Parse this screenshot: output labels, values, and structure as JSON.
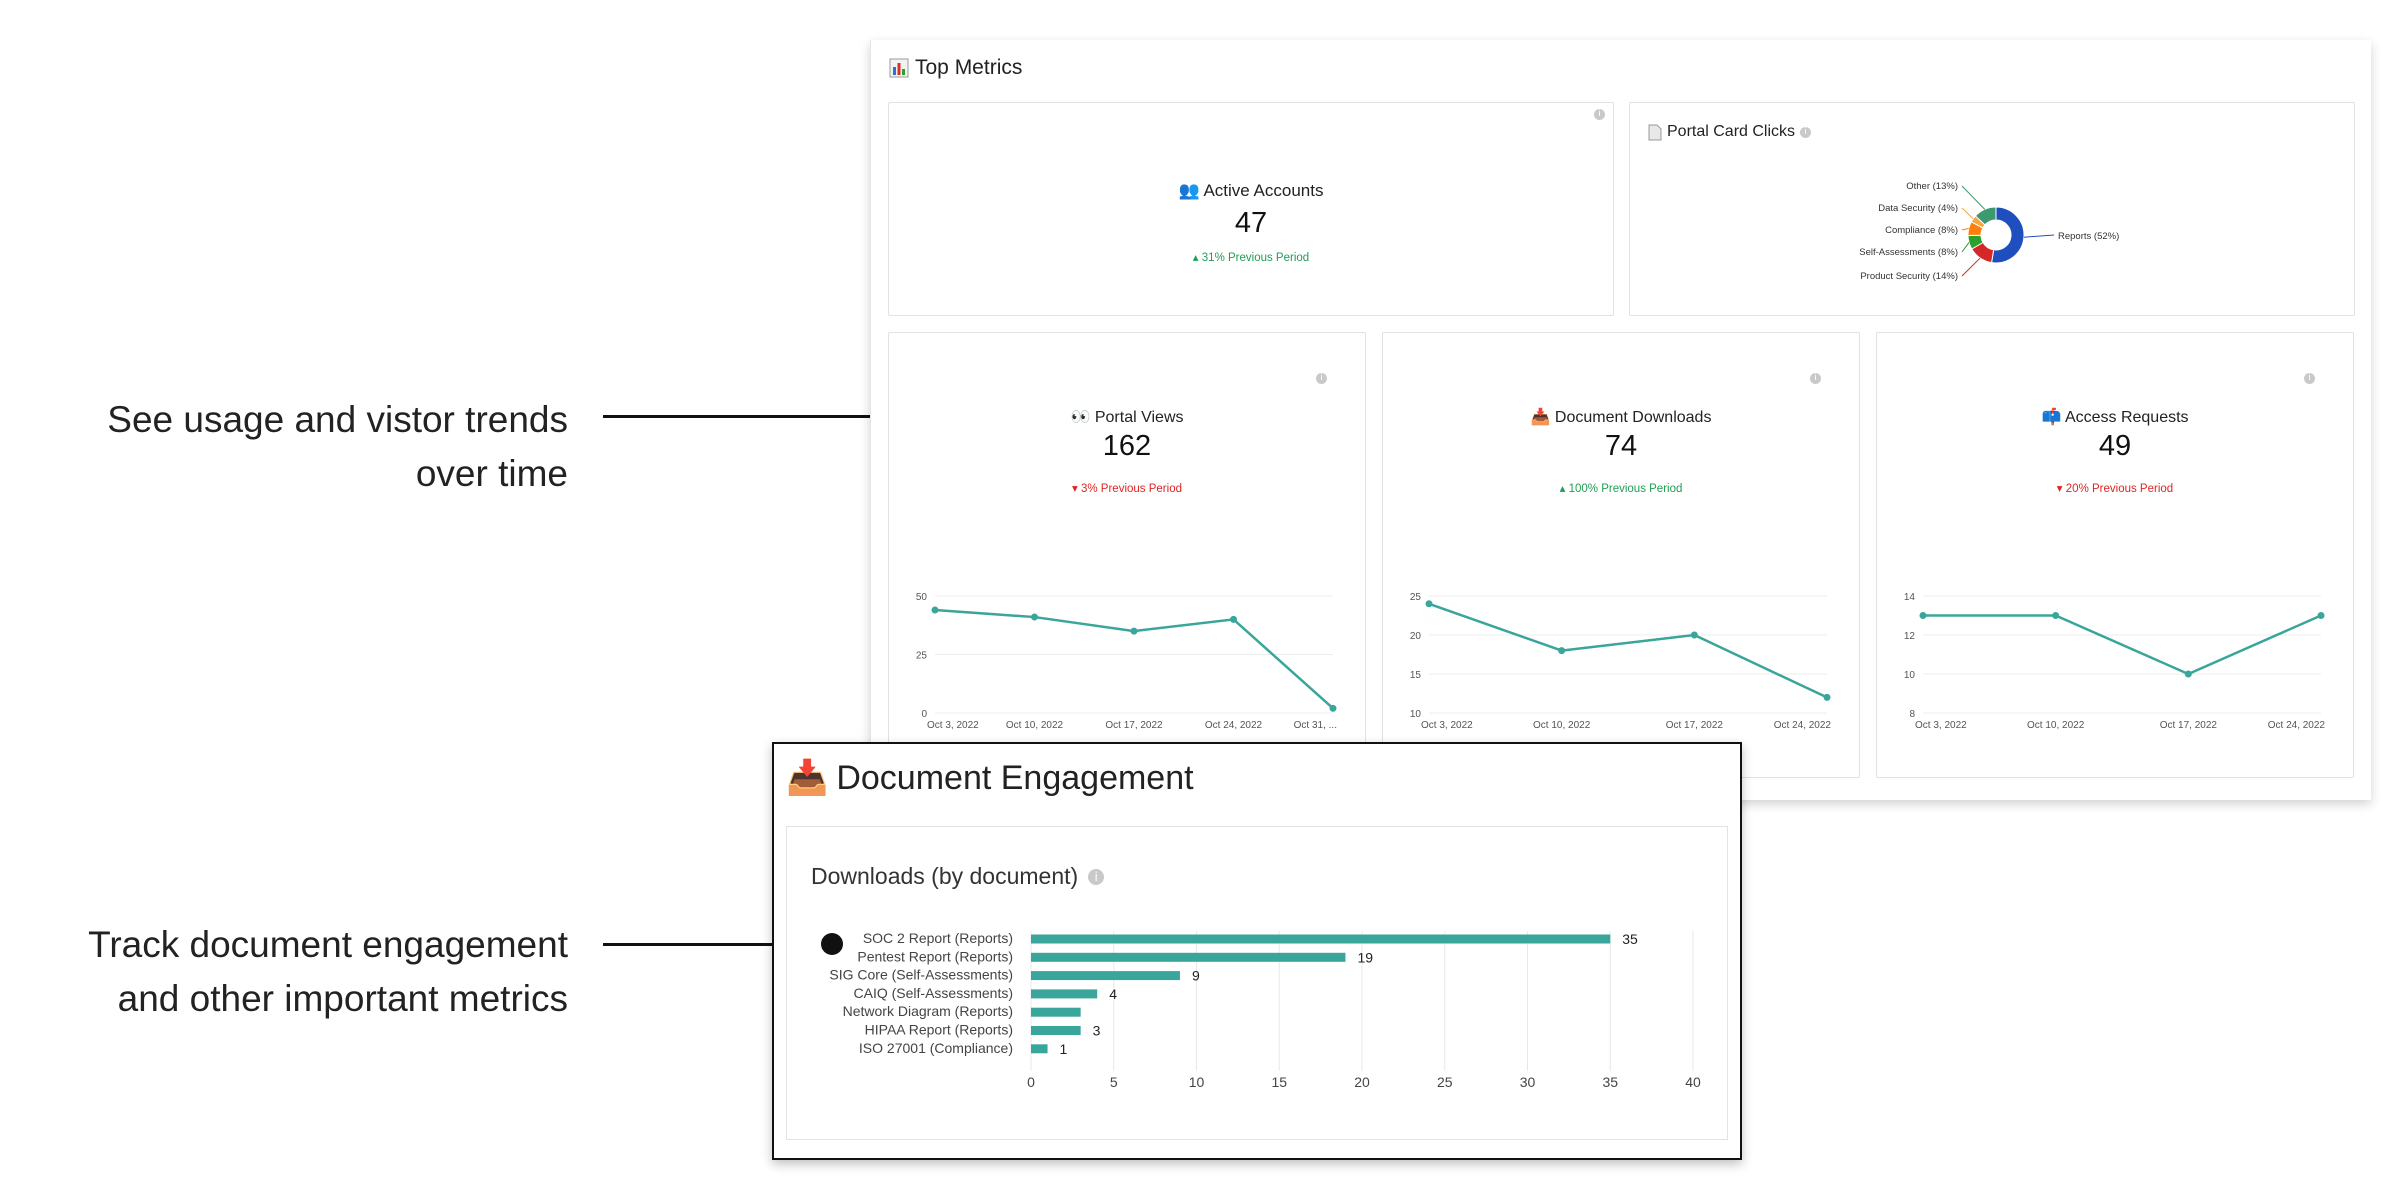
{
  "callouts": {
    "usage": [
      "See usage and vistor trends",
      "over time"
    ],
    "engagement": [
      "Track document engagement",
      "and other important metrics"
    ]
  },
  "top_metrics": {
    "icon": "bar-chart-icon",
    "title": "Top Metrics"
  },
  "active_accounts": {
    "icon": "people-icon",
    "title": "Active Accounts",
    "value": "47",
    "delta": "31% Previous Period",
    "trend": "up"
  },
  "portal_card_clicks": {
    "icon": "document-icon",
    "title": "Portal Card Clicks"
  },
  "kpis": [
    {
      "icon": "eyes-icon",
      "title": "Portal Views",
      "value": "162",
      "delta": "3% Previous Period",
      "trend": "down"
    },
    {
      "icon": "inbox-download-icon",
      "title": "Document Downloads",
      "value": "74",
      "delta": "100% Previous Period",
      "trend": "up"
    },
    {
      "icon": "mailbox-icon",
      "title": "Access Requests",
      "value": "49",
      "delta": "20% Previous Period",
      "trend": "down"
    }
  ],
  "document_engagement": {
    "icon": "inbox-download-icon",
    "title": "Document Engagement",
    "subtitle": "Downloads (by document)"
  },
  "colors": {
    "teal": "#3aa59a",
    "up": "#1f9d55",
    "down": "#e02424",
    "pie": [
      "#1f4fbf",
      "#d62728",
      "#2ca02c",
      "#ff7f0e",
      "#f4a742",
      "#3d9970"
    ]
  },
  "chart_data": [
    {
      "type": "pie",
      "title": "Portal Card Clicks",
      "labels": [
        "Reports (52%)",
        "Product Security (14%)",
        "Self-Assessments (8%)",
        "Compliance (8%)",
        "Data Security (4%)",
        "Other (13%)"
      ],
      "values": [
        52,
        14,
        8,
        8,
        4,
        13
      ],
      "donut": true
    },
    {
      "type": "line",
      "title": "Portal Views",
      "x": [
        "Oct 3, 2022",
        "Oct 10, 2022",
        "Oct 17, 2022",
        "Oct 24, 2022",
        "Oct 31, 2022"
      ],
      "x_tick_labels": [
        "Oct 3, 2022",
        "Oct 10, 2022",
        "Oct 17, 2022",
        "Oct 24, 2022",
        "Oct 31, ..."
      ],
      "y": [
        44,
        41,
        35,
        40,
        2
      ],
      "yticks": [
        0,
        25,
        50
      ],
      "ylim": [
        0,
        50
      ],
      "grid": true
    },
    {
      "type": "line",
      "title": "Document Downloads",
      "x": [
        "Oct 3, 2022",
        "Oct 10, 2022",
        "Oct 17, 2022",
        "Oct 24, 2022"
      ],
      "x_tick_labels": [
        "Oct 3, 2022",
        "Oct 10, 2022",
        "Oct 17, 2022",
        "Oct 24, 2022"
      ],
      "y": [
        24,
        18,
        20,
        12
      ],
      "yticks": [
        10,
        15,
        20,
        25
      ],
      "ylim": [
        10,
        25
      ],
      "grid": true
    },
    {
      "type": "line",
      "title": "Access Requests",
      "x": [
        "Oct 3, 2022",
        "Oct 10, 2022",
        "Oct 17, 2022",
        "Oct 24, 2022"
      ],
      "x_tick_labels": [
        "Oct 3, 2022",
        "Oct 10, 2022",
        "Oct 17, 2022",
        "Oct 24, 2022"
      ],
      "y": [
        13,
        13,
        10,
        13
      ],
      "yticks": [
        8,
        10,
        12,
        14
      ],
      "ylim": [
        8,
        14
      ],
      "grid": true
    },
    {
      "type": "bar",
      "orientation": "horizontal",
      "title": "Downloads (by document)",
      "categories": [
        "SOC 2 Report (Reports)",
        "Pentest Report (Reports)",
        "SIG Core (Self-Assessments)",
        "CAIQ (Self-Assessments)",
        "Network Diagram (Reports)",
        "HIPAA Report (Reports)",
        "ISO 27001 (Compliance)"
      ],
      "values": [
        35,
        19,
        9,
        4,
        3,
        3,
        1
      ],
      "value_labels": [
        "35",
        "19",
        "9",
        "4",
        "",
        "3",
        "1"
      ],
      "xticks": [
        0,
        5,
        10,
        15,
        20,
        25,
        30,
        35,
        40
      ],
      "xlim": [
        0,
        40
      ],
      "grid": true
    }
  ]
}
